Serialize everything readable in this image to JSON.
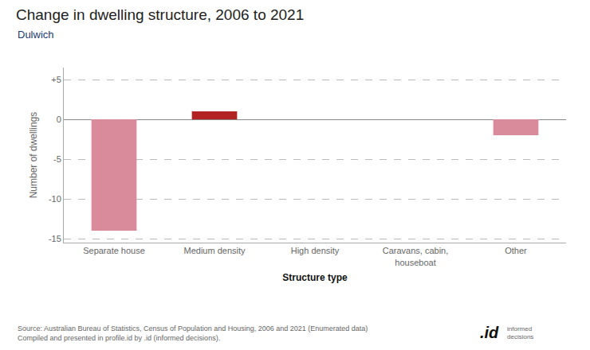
{
  "chart_data": {
    "type": "bar",
    "title": "Change in dwelling structure, 2006 to 2021",
    "subtitle": "Dulwich",
    "categories": [
      "Separate house",
      "Medium density",
      "High density",
      "Caravans, cabin,\nhouseboat",
      "Other"
    ],
    "values": [
      -14,
      1,
      0,
      0,
      -2
    ],
    "colors": [
      "#d98b9b",
      "#b22222",
      "#d98b9b",
      "#d98b9b",
      "#d98b9b"
    ],
    "ylabel": "Number of dwellings",
    "xlabel": "Structure type",
    "ylim": [
      -15.5,
      6.5
    ],
    "yticks": [
      -15,
      -10,
      -5,
      0,
      {
        "value": 5,
        "label": "+5"
      }
    ],
    "grid": true,
    "source": "Source: Australian Bureau of Statistics, Census of Population and Housing, 2006 and 2021 (Enumerated data)\nCompiled and presented in profile.id by .id (informed decisions).",
    "annotations": [
      ".id",
      "informed\ndecisions"
    ]
  }
}
